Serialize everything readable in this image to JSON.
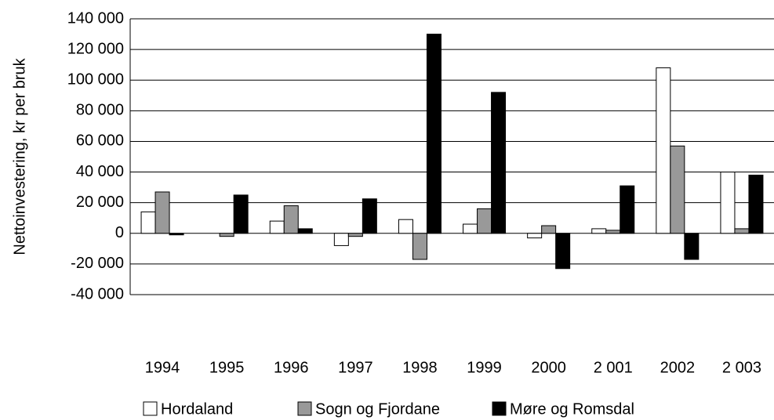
{
  "chart_data": {
    "type": "bar",
    "y_label": "Nettoinvestering, kr per bruk",
    "categories": [
      "1994",
      "1995",
      "1996",
      "1997",
      "1998",
      "1999",
      "2000",
      "2 001",
      "2002",
      "2 003"
    ],
    "series": [
      {
        "name": "Hordaland",
        "color": "#ffffff",
        "values": [
          14000,
          0,
          8000,
          -8000,
          9000,
          6000,
          -3000,
          3000,
          108000,
          40000
        ]
      },
      {
        "name": "Sogn og Fjordane",
        "color": "#999999",
        "values": [
          27000,
          -2000,
          18000,
          -2000,
          -17000,
          16000,
          5000,
          2000,
          57000,
          3000
        ]
      },
      {
        "name": "Møre og Romsdal",
        "color": "#000000",
        "values": [
          -1000,
          25000,
          3000,
          22500,
          130000,
          92000,
          -23000,
          31000,
          -17000,
          38000
        ]
      }
    ],
    "ylim": [
      -40000,
      140000
    ],
    "yticks": [
      {
        "value": -40000,
        "label": "-40 000"
      },
      {
        "value": -20000,
        "label": "-20 000"
      },
      {
        "value": 0,
        "label": "0"
      },
      {
        "value": 20000,
        "label": "20 000"
      },
      {
        "value": 40000,
        "label": "40 000"
      },
      {
        "value": 60000,
        "label": "60 000"
      },
      {
        "value": 80000,
        "label": "80 000"
      },
      {
        "value": 100000,
        "label": "100 000"
      },
      {
        "value": 120000,
        "label": "120 000"
      },
      {
        "value": 140000,
        "label": "140 000"
      }
    ],
    "grid": true,
    "legend": "bottom"
  }
}
